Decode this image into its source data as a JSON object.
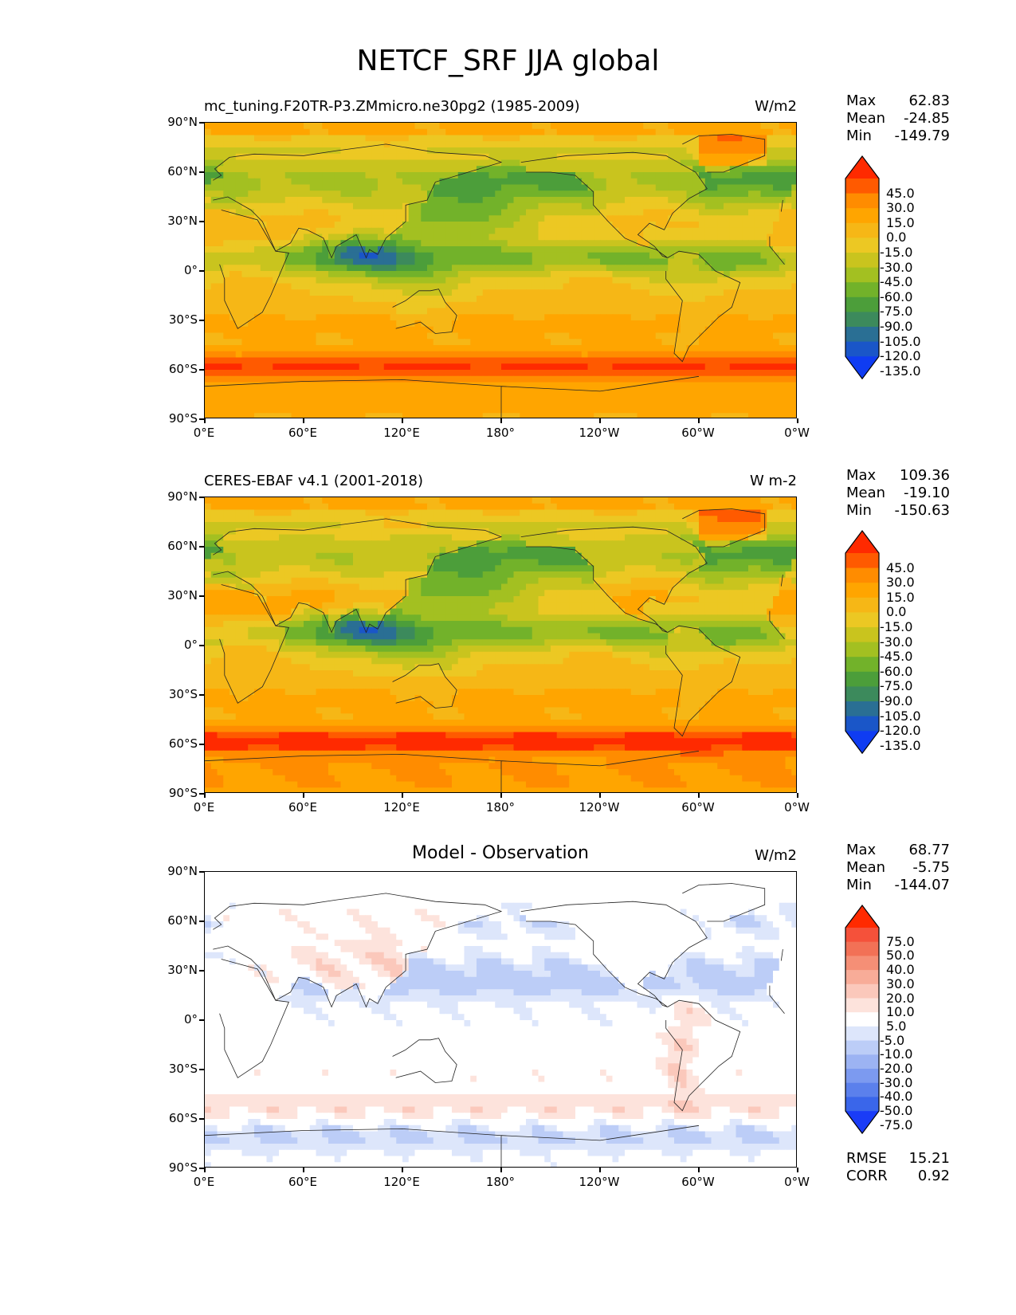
{
  "figure": {
    "title": "NETCF_SRF JJA global"
  },
  "axes": {
    "lat_ticks": [
      "90°N",
      "60°N",
      "30°N",
      "0°",
      "30°S",
      "60°S",
      "90°S"
    ],
    "lon_ticks": [
      "0°E",
      "60°E",
      "120°E",
      "180°",
      "120°W",
      "60°W",
      "0°W"
    ]
  },
  "panels": [
    {
      "title": "mc_tuning.F20TR-P3.ZMmicro.ne30pg2 (1985-2009)",
      "units": "W/m2",
      "stats": {
        "max_label": "Max",
        "max": "62.83",
        "mean_label": "Mean",
        "mean": "-24.85",
        "min_label": "Min",
        "min": "-149.79"
      },
      "colorbar_labels": [
        "45.0",
        "30.0",
        "15.0",
        "0.0",
        "-15.0",
        "-30.0",
        "-45.0",
        "-60.0",
        "-75.0",
        "-90.0",
        "-105.0",
        "-120.0",
        "-135.0"
      ],
      "colorbar_colors": [
        "#ff2a00",
        "#ff5a00",
        "#ff8c00",
        "#ffa500",
        "#f6b716",
        "#ecc823",
        "#c9c41e",
        "#a3c021",
        "#72b22a",
        "#4c9e3a",
        "#3c8a5c",
        "#2a6f94",
        "#1a56c8",
        "#0f3cf2"
      ],
      "colormap": "fields"
    },
    {
      "title": "CERES-EBAF v4.1 (2001-2018)",
      "units": "W m-2",
      "stats": {
        "max_label": "Max",
        "max": "109.36",
        "mean_label": "Mean",
        "mean": "-19.10",
        "min_label": "Min",
        "min": "-150.63"
      },
      "colorbar_labels": [
        "45.0",
        "30.0",
        "15.0",
        "0.0",
        "-15.0",
        "-30.0",
        "-45.0",
        "-60.0",
        "-75.0",
        "-90.0",
        "-105.0",
        "-120.0",
        "-135.0"
      ],
      "colorbar_colors": [
        "#ff2a00",
        "#ff5a00",
        "#ff8c00",
        "#ffa500",
        "#f6b716",
        "#ecc823",
        "#c9c41e",
        "#a3c021",
        "#72b22a",
        "#4c9e3a",
        "#3c8a5c",
        "#2a6f94",
        "#1a56c8",
        "#0f3cf2"
      ],
      "colormap": "fields"
    },
    {
      "title": "Model - Observation",
      "units": "W/m2",
      "stats": {
        "max_label": "Max",
        "max": "68.77",
        "mean_label": "Mean",
        "mean": "-5.75",
        "min_label": "Min",
        "min": "-144.07"
      },
      "colorbar_labels": [
        "75.0",
        "50.0",
        "40.0",
        "30.0",
        "20.0",
        "10.0",
        "5.0",
        "-5.0",
        "-10.0",
        "-20.0",
        "-30.0",
        "-40.0",
        "-50.0",
        "-75.0"
      ],
      "colorbar_colors": [
        "#ff2a00",
        "#f5513a",
        "#f27156",
        "#f58f76",
        "#f8ac98",
        "#fbc8bb",
        "#fde3dc",
        "#ffffff",
        "#dde6fb",
        "#bccdf7",
        "#9cb3f3",
        "#7c9af0",
        "#5b80ec",
        "#3a66ea",
        "#1a3cf7"
      ],
      "extra_stats": {
        "rmse_label": "RMSE",
        "rmse": "15.21",
        "corr_label": "CORR",
        "corr": "0.92"
      },
      "colormap": "diff"
    }
  ]
}
